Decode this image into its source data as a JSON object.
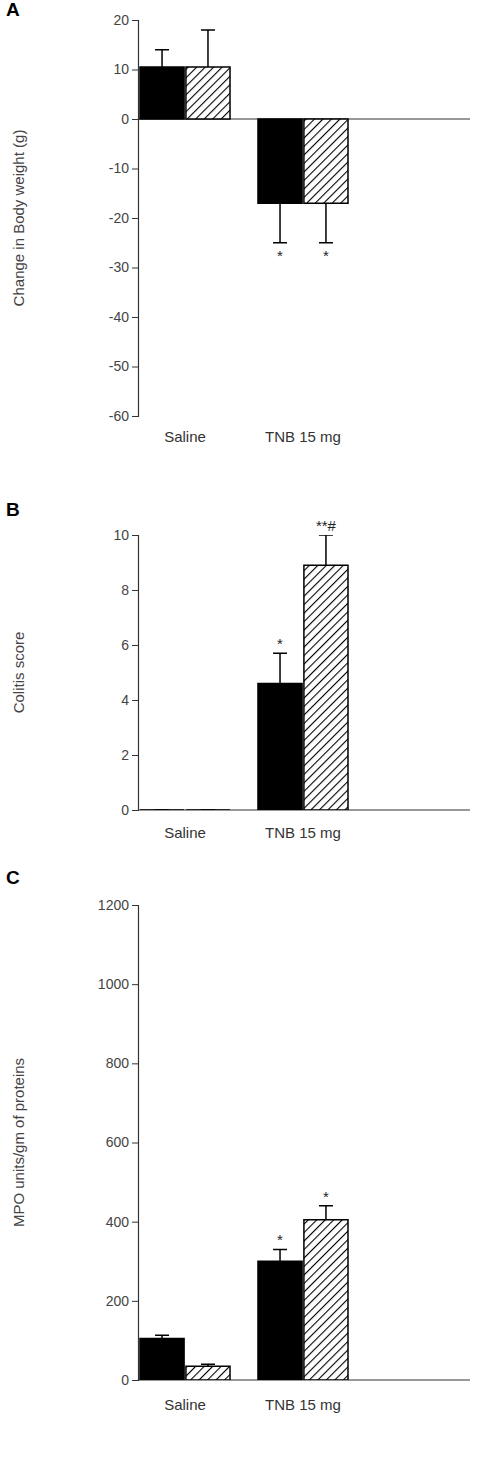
{
  "chart_data": [
    {
      "type": "bar",
      "title": "A",
      "y_label": "Change in Body weight (g)",
      "categories": [
        "Saline",
        "TNB 15 mg"
      ],
      "series": [
        {
          "color": "#000000",
          "values": [
            10.5,
            -17
          ],
          "errors": [
            3.5,
            8
          ],
          "annotations": [
            null,
            "*"
          ]
        },
        {
          "color": "#000000",
          "values": [
            10.5,
            -17
          ],
          "errors": [
            7.5,
            8
          ],
          "annotations": [
            null,
            "*"
          ]
        }
      ],
      "ylim": [
        -60,
        20
      ],
      "yticks": [
        -60,
        -50,
        -40,
        -30,
        -20,
        -10,
        0,
        10,
        20
      ]
    },
    {
      "type": "bar",
      "title": "B",
      "y_label": "Colitis score",
      "categories": [
        "Saline",
        "TNB 15 mg"
      ],
      "series": [
        {
          "color": "#000000",
          "values": [
            0,
            4.6
          ],
          "errors": [
            0,
            1.1
          ],
          "annotations": [
            null,
            "*"
          ]
        },
        {
          "color": "#000000",
          "values": [
            0,
            8.9
          ],
          "errors": [
            0,
            1.1
          ],
          "annotations": [
            null,
            "**#"
          ]
        }
      ],
      "ylim": [
        0,
        10
      ],
      "yticks": [
        0,
        2,
        4,
        6,
        8,
        10
      ]
    },
    {
      "type": "bar",
      "title": "C",
      "y_label": "MPO units/gm of proteins",
      "categories": [
        "Saline",
        "TNB 15 mg"
      ],
      "series": [
        {
          "color": "#000000",
          "values": [
            105,
            300
          ],
          "errors": [
            8,
            30
          ],
          "annotations": [
            null,
            "*"
          ]
        },
        {
          "color": "#000000",
          "values": [
            35,
            405
          ],
          "errors": [
            5,
            35
          ],
          "annotations": [
            null,
            "*"
          ]
        }
      ],
      "ylim": [
        0,
        1200
      ],
      "yticks": [
        0,
        200,
        400,
        600,
        800,
        1000,
        1200
      ]
    }
  ]
}
